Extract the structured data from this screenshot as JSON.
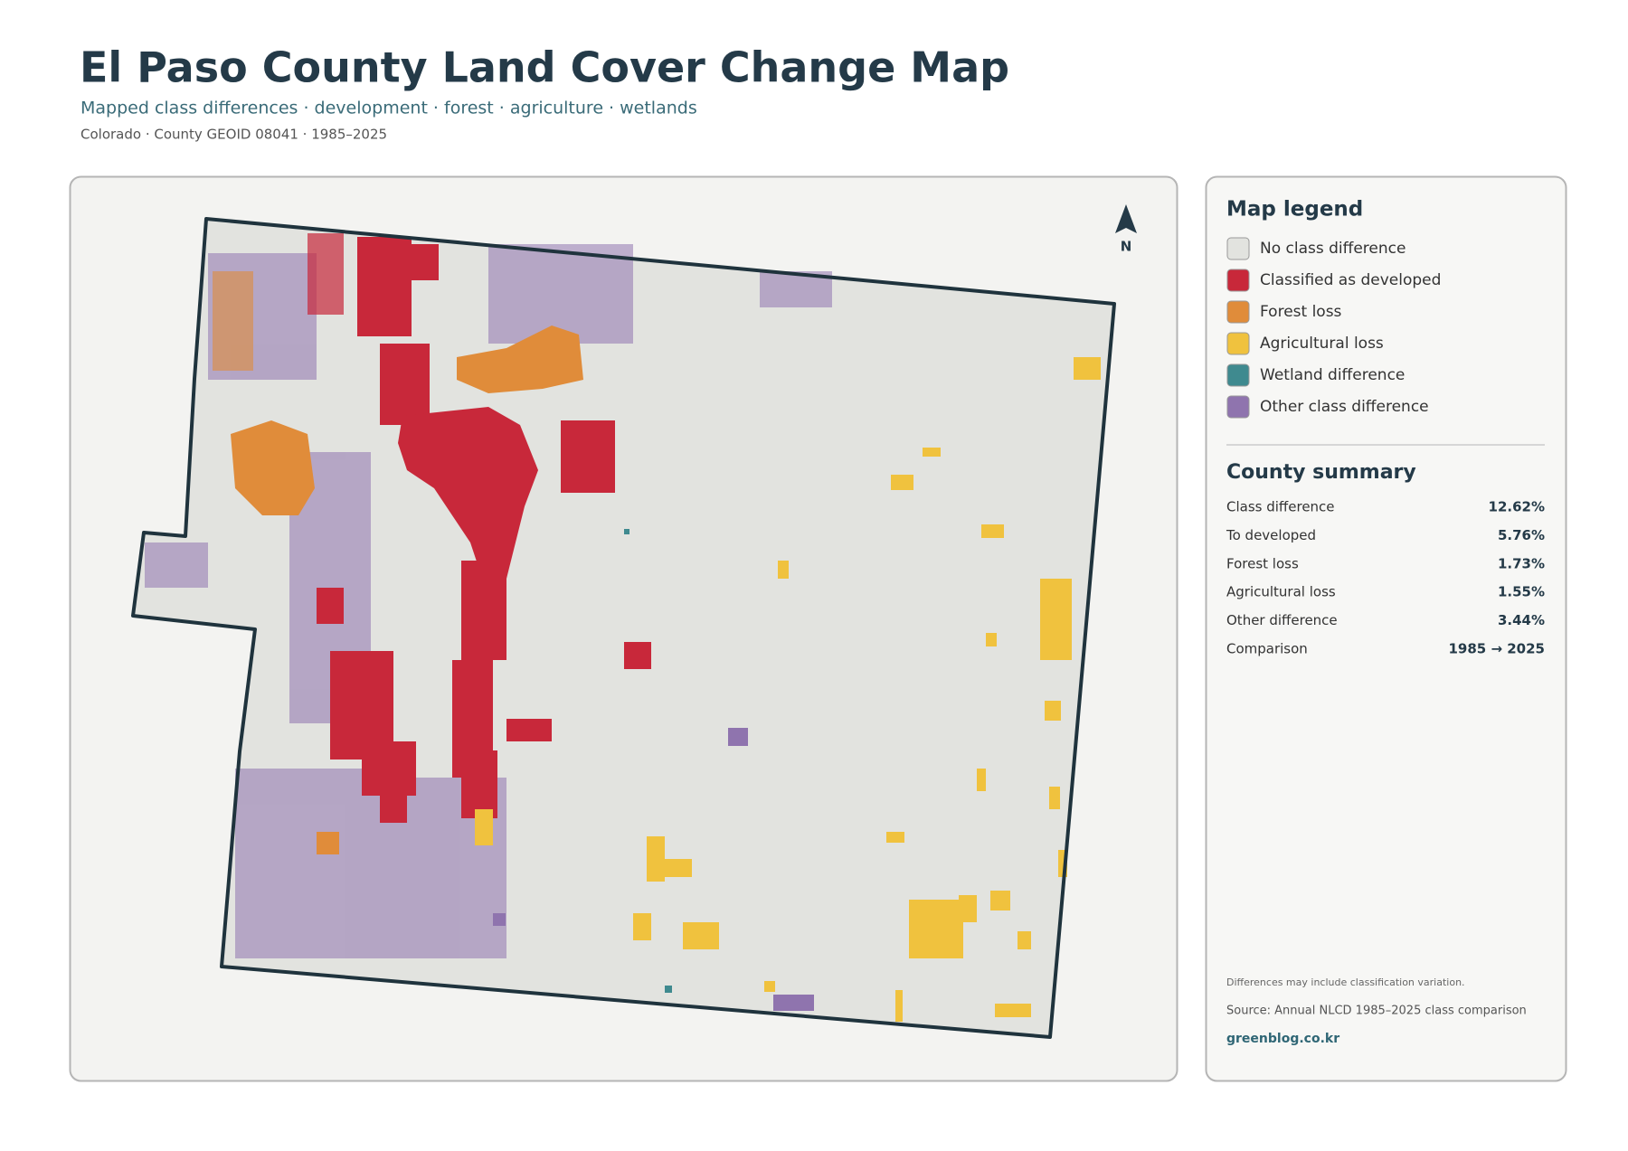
{
  "header": {
    "title": "El Paso County Land Cover Change Map",
    "subtitle": "Mapped class differences · development · forest · agriculture · wetlands",
    "meta": "Colorado · County GEOID 08041 · 1985–2025"
  },
  "map": {
    "north_label": "N"
  },
  "legend": {
    "title": "Map legend",
    "items": [
      {
        "label": "No class difference",
        "color": "#e2e3df"
      },
      {
        "label": "Classified as developed",
        "color": "#c8283a"
      },
      {
        "label": "Forest loss",
        "color": "#e08c3a"
      },
      {
        "label": "Agricultural loss",
        "color": "#f0c23e"
      },
      {
        "label": "Wetland difference",
        "color": "#3f8a8f"
      },
      {
        "label": "Other class difference",
        "color": "#8f74ae"
      }
    ]
  },
  "summary": {
    "title": "County summary",
    "rows": [
      {
        "label": "Class difference",
        "value": "12.62%"
      },
      {
        "label": "To developed",
        "value": "5.76%"
      },
      {
        "label": "Forest loss",
        "value": "1.73%"
      },
      {
        "label": "Agricultural loss",
        "value": "1.55%"
      },
      {
        "label": "Other difference",
        "value": "3.44%"
      },
      {
        "label": "Comparison",
        "value": "1985 → 2025"
      }
    ]
  },
  "footer": {
    "note": "Differences may include classification variation.",
    "source": "Source: Annual NLCD 1985–2025 class comparison",
    "site": "greenblog.co.kr"
  }
}
